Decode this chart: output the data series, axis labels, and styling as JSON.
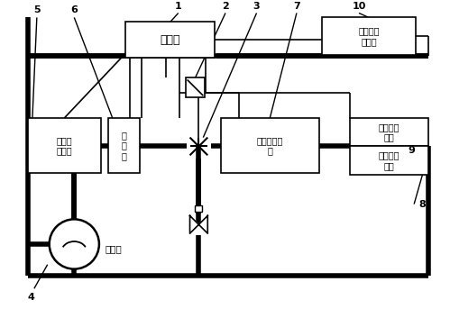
{
  "bg_color": "#ffffff",
  "line_color": "#000000",
  "labels": {
    "controller": "控制器",
    "condenser_dryer": "冷凝器\n干燥器",
    "power_switch": "力\n开\n关",
    "evaporator": "索贝能蒸发\n器",
    "refrigeration_circuit": "冷藏机组\n电路",
    "refrigeration_unit": "货能冷藏\n机组",
    "compressor": "压缩机",
    "temp_sensor": "货箱温度\n传感器"
  },
  "num_labels": [
    "1",
    "2",
    "3",
    "4",
    "5",
    "6",
    "7",
    "8",
    "9",
    "10"
  ]
}
